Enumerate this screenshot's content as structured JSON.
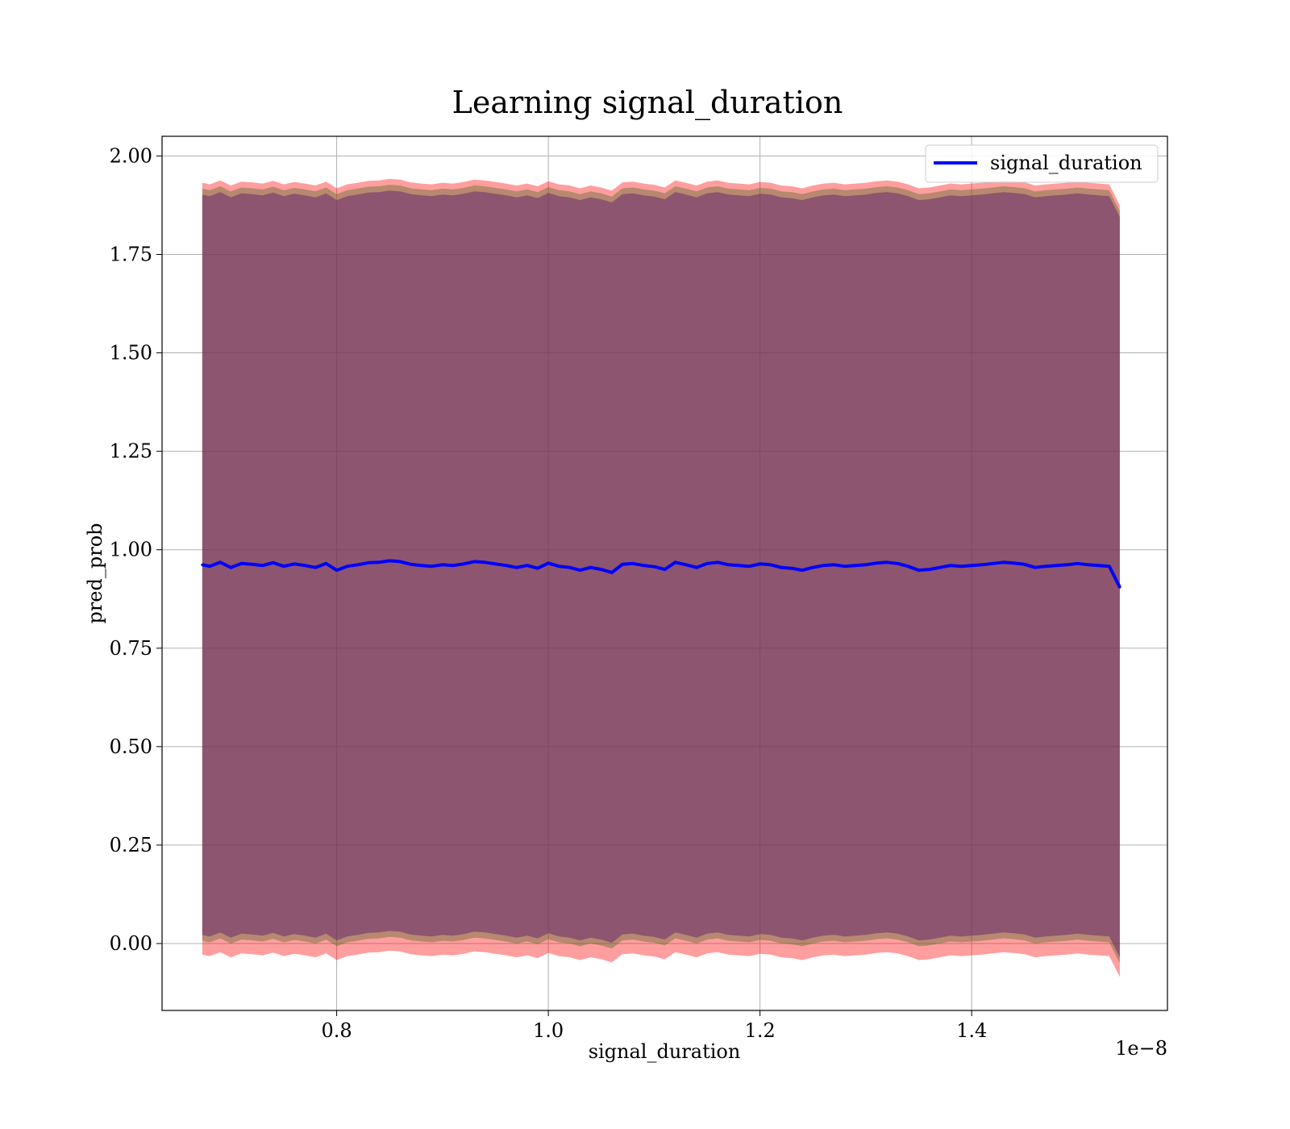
{
  "chart_data": {
    "type": "line",
    "title": "Learning signal_duration",
    "xlabel": "signal_duration",
    "ylabel": "pred_prob",
    "x_offset_text": "1e−8",
    "xlim": [
      6.35e-09,
      1.585e-08
    ],
    "ylim": [
      -0.17,
      2.05
    ],
    "x_ticks": [
      8e-09,
      1e-08,
      1.2e-08,
      1.4e-08
    ],
    "x_tick_labels": [
      "0.8",
      "1.0",
      "1.2",
      "1.4"
    ],
    "y_ticks": [
      0,
      0.25,
      0.5,
      0.75,
      1.0,
      1.25,
      1.5,
      1.75,
      2.0
    ],
    "y_tick_labels": [
      "0.00",
      "0.25",
      "0.50",
      "0.75",
      "1.00",
      "1.25",
      "1.50",
      "1.75",
      "2.00"
    ],
    "grid": true,
    "legend_position": "top-right",
    "series": [
      {
        "name": "signal_duration",
        "color": "#0000ff",
        "x": [
          6.73e-09,
          6.8e-09,
          6.9e-09,
          7e-09,
          7.1e-09,
          7.2e-09,
          7.3e-09,
          7.4e-09,
          7.5e-09,
          7.6e-09,
          7.7e-09,
          7.8e-09,
          7.9e-09,
          8e-09,
          8.1e-09,
          8.2e-09,
          8.3e-09,
          8.4e-09,
          8.5e-09,
          8.6e-09,
          8.7e-09,
          8.8e-09,
          8.9e-09,
          9e-09,
          9.1e-09,
          9.2e-09,
          9.3e-09,
          9.4e-09,
          9.5e-09,
          9.6e-09,
          9.7e-09,
          9.8e-09,
          9.9e-09,
          1e-08,
          1.01e-08,
          1.02e-08,
          1.03e-08,
          1.04e-08,
          1.05e-08,
          1.06e-08,
          1.07e-08,
          1.08e-08,
          1.09e-08,
          1.1e-08,
          1.11e-08,
          1.12e-08,
          1.13e-08,
          1.14e-08,
          1.15e-08,
          1.16e-08,
          1.17e-08,
          1.18e-08,
          1.19e-08,
          1.2e-08,
          1.21e-08,
          1.22e-08,
          1.23e-08,
          1.24e-08,
          1.25e-08,
          1.26e-08,
          1.27e-08,
          1.28e-08,
          1.29e-08,
          1.3e-08,
          1.31e-08,
          1.32e-08,
          1.33e-08,
          1.34e-08,
          1.35e-08,
          1.36e-08,
          1.37e-08,
          1.38e-08,
          1.39e-08,
          1.4e-08,
          1.41e-08,
          1.42e-08,
          1.43e-08,
          1.44e-08,
          1.45e-08,
          1.46e-08,
          1.47e-08,
          1.48e-08,
          1.49e-08,
          1.5e-08,
          1.51e-08,
          1.52e-08,
          1.53e-08,
          1.54e-08
        ],
        "y": [
          0.962,
          0.958,
          0.968,
          0.955,
          0.965,
          0.963,
          0.96,
          0.967,
          0.958,
          0.964,
          0.96,
          0.955,
          0.965,
          0.948,
          0.958,
          0.962,
          0.967,
          0.968,
          0.972,
          0.97,
          0.963,
          0.96,
          0.958,
          0.962,
          0.96,
          0.964,
          0.97,
          0.968,
          0.964,
          0.96,
          0.955,
          0.96,
          0.953,
          0.966,
          0.958,
          0.955,
          0.948,
          0.955,
          0.95,
          0.942,
          0.963,
          0.965,
          0.96,
          0.957,
          0.95,
          0.968,
          0.962,
          0.955,
          0.965,
          0.968,
          0.962,
          0.96,
          0.958,
          0.964,
          0.962,
          0.955,
          0.953,
          0.948,
          0.955,
          0.96,
          0.962,
          0.958,
          0.96,
          0.962,
          0.966,
          0.968,
          0.965,
          0.958,
          0.948,
          0.95,
          0.955,
          0.96,
          0.958,
          0.96,
          0.962,
          0.965,
          0.968,
          0.966,
          0.963,
          0.955,
          0.958,
          0.96,
          0.962,
          0.965,
          0.962,
          0.96,
          0.958,
          0.905
        ]
      }
    ],
    "bands": [
      {
        "color": "#ff0000",
        "opacity": 0.38,
        "y_lower_offset": -0.99,
        "y_upper_offset": 0.97
      },
      {
        "color": "#556b2f",
        "opacity": 0.42,
        "y_lower_offset": -0.955,
        "y_upper_offset": 0.955
      },
      {
        "color": "#6a2c70",
        "opacity": 0.55,
        "y_lower_offset": -0.94,
        "y_upper_offset": 0.94
      }
    ]
  }
}
